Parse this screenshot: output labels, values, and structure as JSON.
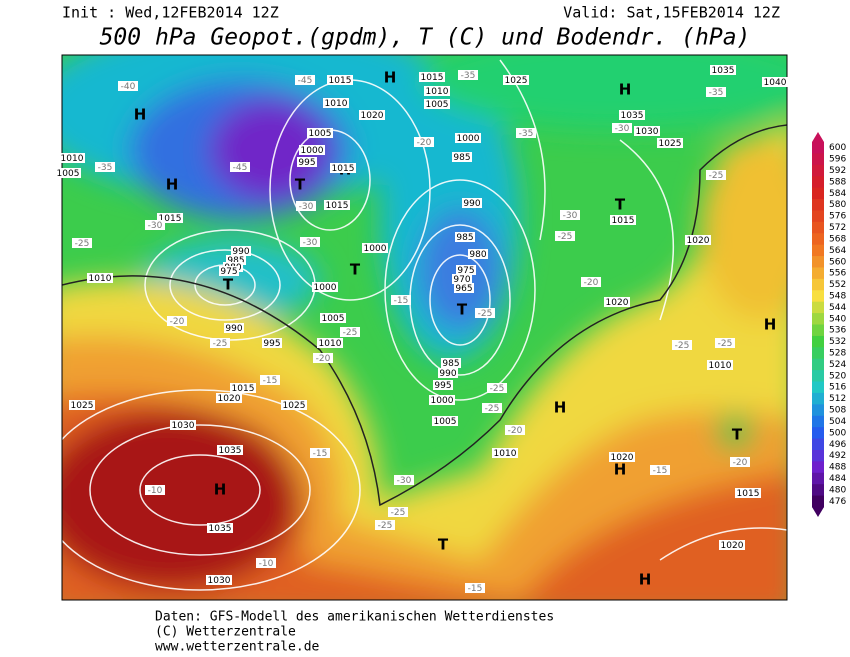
{
  "header": {
    "init": "Init : Wed,12FEB2014 12Z",
    "valid": "Valid: Sat,15FEB2014 12Z",
    "title": "500 hPa Geopot.(gpdm), T (C) und Bodendr. (hPa)"
  },
  "legend": {
    "ticks": [
      "600",
      "596",
      "592",
      "588",
      "584",
      "580",
      "576",
      "572",
      "568",
      "564",
      "560",
      "556",
      "552",
      "548",
      "544",
      "540",
      "536",
      "532",
      "528",
      "524",
      "520",
      "516",
      "512",
      "508",
      "504",
      "500",
      "496",
      "492",
      "488",
      "484",
      "480",
      "476"
    ]
  },
  "map": {
    "labels": [
      "H",
      "H",
      "H",
      "T",
      "T",
      "T",
      "H",
      "T",
      "H",
      "T",
      "H",
      "H",
      "T",
      "H",
      "T",
      "H",
      "H",
      "1015",
      "1010",
      "1020",
      "1005",
      "1000",
      "995",
      "1015",
      "1015",
      "1000",
      "1000",
      "1005",
      "1010",
      "995",
      "990",
      "1015",
      "1020",
      "1025",
      "1030",
      "1035",
      "1035",
      "1030",
      "1025",
      "1000",
      "985",
      "990",
      "985",
      "980",
      "975",
      "970",
      "965",
      "985",
      "990",
      "995",
      "1000",
      "1005",
      "1010",
      "1015",
      "1020",
      "1025",
      "1030",
      "1035",
      "1035",
      "1040",
      "1025",
      "1015",
      "1010",
      "1005",
      "1020",
      "1020",
      "1015",
      "1020",
      "1010",
      "1010",
      "1005",
      "1015",
      "1010",
      "990",
      "985",
      "980",
      "975",
      "-40",
      "-45",
      "-45",
      "-35",
      "-30",
      "-25",
      "-20",
      "-25",
      "-25",
      "-20",
      "-15",
      "-15",
      "-10",
      "-10",
      "-35",
      "-35",
      "-30",
      "-25",
      "-20",
      "-25",
      "-25",
      "-25",
      "-20",
      "-30",
      "-25",
      "-25",
      "-15",
      "-15",
      "-20",
      "-25",
      "-25",
      "-25",
      "-35",
      "-30",
      "-30",
      "-30",
      "-20",
      "-15"
    ]
  },
  "footer": {
    "source": "Daten: GFS-Modell des amerikanischen Wetterdienstes",
    "copyright": "(C) Wetterzentrale",
    "url": "www.wetterzentrale.de"
  }
}
